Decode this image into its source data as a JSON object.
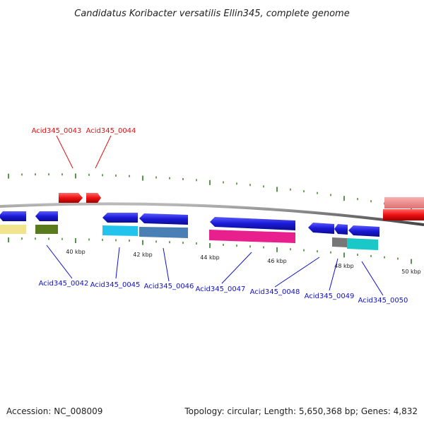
{
  "title": "Candidatus Koribacter versatilis Ellin345, complete genome",
  "footer": {
    "accession": "Accession: NC_008009",
    "summary": "Topology: circular; Length: 5,650,368 bp; Genes: 4,832"
  },
  "ticks": {
    "labels": [
      "40 kbp",
      "42 kbp",
      "44 kbp",
      "46 kbp",
      "48 kbp",
      "50 kbp"
    ],
    "color": "#2e7d1e"
  },
  "backbone_color": "#888888",
  "gene_labels": [
    {
      "text": "Acid345_0043",
      "color": "#dd1111"
    },
    {
      "text": "Acid345_0044",
      "color": "#dd1111"
    },
    {
      "text": "Acid345_0042",
      "color": "#1111cc"
    },
    {
      "text": "Acid345_0045",
      "color": "#1111cc"
    },
    {
      "text": "Acid345_0046",
      "color": "#1111cc"
    },
    {
      "text": "Acid345_0047",
      "color": "#1111cc"
    },
    {
      "text": "Acid345_0048",
      "color": "#1111cc"
    },
    {
      "text": "Acid345_0049",
      "color": "#1111cc"
    },
    {
      "text": "Acid345_0050",
      "color": "#1111cc"
    }
  ],
  "colors": {
    "forward_gene": "#ee1111",
    "reverse_gene": "#1a1ad6",
    "cog_yellow": "#f2e38e",
    "cog_olive": "#5a7a1e",
    "cog_cyan": "#22c4ee",
    "cog_steel": "#4a7fb5",
    "cog_magenta": "#e8208e",
    "cog_gray": "#777777",
    "cog_teal": "#1ac8c8",
    "cog_pink": "#ee8888"
  }
}
